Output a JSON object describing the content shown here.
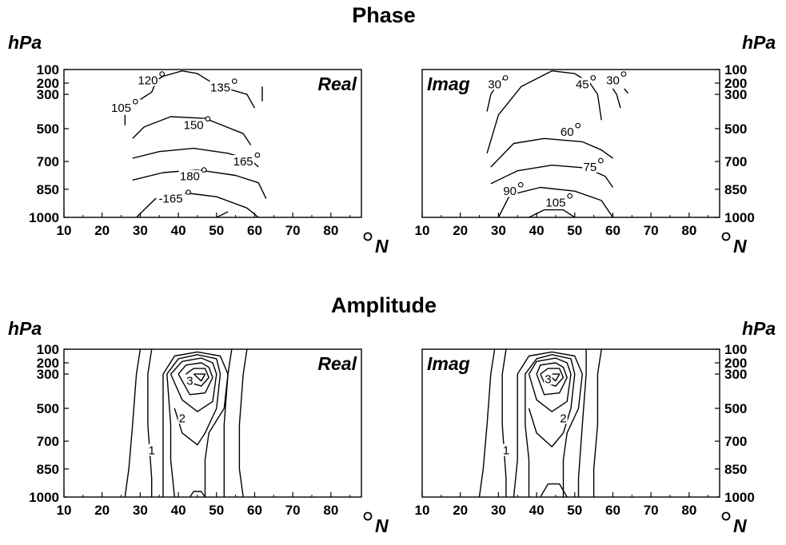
{
  "figure": {
    "phase_title": "Phase",
    "amplitude_title": "Amplitude",
    "pressure_unit": "hPa",
    "lat_unit": "N"
  },
  "chart_data": [
    {
      "type": "contour",
      "title": "Phase",
      "panel_label": "Real",
      "ylabel": "hPa",
      "xlabel": "N",
      "x_ticks": [
        "10",
        "20",
        "30",
        "40",
        "50",
        "60",
        "70",
        "80"
      ],
      "y_ticks": [
        "100",
        "200",
        "300",
        "500",
        "700",
        "850",
        "1000"
      ],
      "xlim": [
        10,
        88
      ],
      "ylim": [
        1000,
        100
      ],
      "contour_labels": [
        {
          "text": "120",
          "x": 32,
          "p": 180,
          "deg": true
        },
        {
          "text": "135",
          "x": 51,
          "p": 240,
          "deg": true
        },
        {
          "text": "105",
          "x": 25,
          "p": 380,
          "deg": true
        },
        {
          "text": "150",
          "x": 44,
          "p": 480,
          "deg": true
        },
        {
          "text": "165",
          "x": 57,
          "p": 700,
          "deg": true
        },
        {
          "text": "180",
          "x": 43,
          "p": 780,
          "deg": true
        },
        {
          "text": "-165",
          "x": 38,
          "p": 900,
          "deg": true
        }
      ],
      "contours": [
        [
          [
            30,
            150
          ],
          [
            34,
            200
          ],
          [
            33,
            280
          ],
          [
            30,
            330
          ]
        ],
        [
          [
            26,
            420
          ],
          [
            26,
            480
          ]
        ],
        [
          [
            33,
            200
          ],
          [
            36,
            150
          ],
          [
            41,
            110
          ],
          [
            45,
            130
          ],
          [
            49,
            200
          ],
          [
            54,
            260
          ],
          [
            58,
            300
          ],
          [
            60,
            380
          ]
        ],
        [
          [
            28,
            560
          ],
          [
            31,
            490
          ],
          [
            38,
            430
          ],
          [
            47,
            440
          ],
          [
            57,
            530
          ],
          [
            59,
            600
          ]
        ],
        [
          [
            28,
            680
          ],
          [
            35,
            640
          ],
          [
            44,
            620
          ],
          [
            53,
            650
          ],
          [
            59,
            690
          ],
          [
            61,
            730
          ]
        ],
        [
          [
            28,
            800
          ],
          [
            36,
            760
          ],
          [
            45,
            745
          ],
          [
            55,
            775
          ],
          [
            61,
            815
          ],
          [
            63,
            900
          ]
        ],
        [
          [
            29,
            1000
          ],
          [
            34,
            900
          ],
          [
            42,
            870
          ],
          [
            50,
            890
          ],
          [
            58,
            950
          ],
          [
            61,
            1000
          ]
        ],
        [
          [
            50,
            1000
          ],
          [
            53,
            970
          ]
        ],
        [
          [
            62,
            230
          ],
          [
            62,
            340
          ]
        ]
      ]
    },
    {
      "type": "contour",
      "title": "Phase",
      "panel_label": "Imag",
      "ylabel": "hPa",
      "xlabel": "N",
      "x_ticks": [
        "10",
        "20",
        "30",
        "40",
        "50",
        "60",
        "70",
        "80"
      ],
      "y_ticks": [
        "100",
        "200",
        "300",
        "500",
        "700",
        "850",
        "1000"
      ],
      "xlim": [
        10,
        88
      ],
      "ylim": [
        1000,
        100
      ],
      "contour_labels": [
        {
          "text": "30",
          "x": 29,
          "p": 210,
          "deg": true
        },
        {
          "text": "45",
          "x": 52,
          "p": 210,
          "deg": true
        },
        {
          "text": "30",
          "x": 60,
          "p": 180,
          "deg": true
        },
        {
          "text": "60",
          "x": 48,
          "p": 520,
          "deg": true
        },
        {
          "text": "75",
          "x": 54,
          "p": 730,
          "deg": true
        },
        {
          "text": "90",
          "x": 33,
          "p": 860,
          "deg": true
        },
        {
          "text": "105",
          "x": 45,
          "p": 920,
          "deg": true
        }
      ],
      "contours": [
        [
          [
            27,
            400
          ],
          [
            28,
            300
          ],
          [
            30,
            200
          ],
          [
            32,
            150
          ]
        ],
        [
          [
            27,
            650
          ],
          [
            30,
            420
          ],
          [
            36,
            230
          ],
          [
            44,
            110
          ],
          [
            50,
            130
          ],
          [
            54,
            200
          ],
          [
            56,
            300
          ],
          [
            57,
            450
          ]
        ],
        [
          [
            28,
            730
          ],
          [
            34,
            590
          ],
          [
            42,
            560
          ],
          [
            52,
            580
          ],
          [
            57,
            630
          ],
          [
            60,
            680
          ]
        ],
        [
          [
            28,
            820
          ],
          [
            35,
            750
          ],
          [
            44,
            720
          ],
          [
            53,
            735
          ],
          [
            58,
            780
          ],
          [
            60,
            840
          ]
        ],
        [
          [
            30,
            1000
          ],
          [
            33,
            880
          ],
          [
            41,
            840
          ],
          [
            50,
            860
          ],
          [
            57,
            910
          ],
          [
            60,
            1000
          ]
        ],
        [
          [
            38,
            1000
          ],
          [
            42,
            960
          ],
          [
            47,
            960
          ],
          [
            50,
            1000
          ]
        ],
        [
          [
            60,
            250
          ],
          [
            61,
            300
          ],
          [
            62,
            380
          ]
        ],
        [
          [
            63,
            250
          ],
          [
            64,
            290
          ]
        ]
      ]
    },
    {
      "type": "contour",
      "title": "Amplitude",
      "panel_label": "Real",
      "ylabel": "hPa",
      "xlabel": "N",
      "x_ticks": [
        "10",
        "20",
        "30",
        "40",
        "50",
        "60",
        "70",
        "80"
      ],
      "y_ticks": [
        "100",
        "200",
        "300",
        "500",
        "700",
        "850",
        "1000"
      ],
      "xlim": [
        10,
        88
      ],
      "ylim": [
        1000,
        100
      ],
      "contour_labels": [
        {
          "text": "3",
          "x": 43,
          "p": 340
        },
        {
          "text": "2",
          "x": 41,
          "p": 560
        },
        {
          "text": "1",
          "x": 33,
          "p": 750
        }
      ],
      "contours": [
        [
          [
            30,
            100
          ],
          [
            29,
            300
          ],
          [
            28,
            600
          ],
          [
            27,
            850
          ],
          [
            26,
            1000
          ]
        ],
        [
          [
            58,
            100
          ],
          [
            57,
            300
          ],
          [
            56,
            600
          ],
          [
            56,
            850
          ],
          [
            57,
            1000
          ]
        ],
        [
          [
            33,
            100
          ],
          [
            32,
            300
          ],
          [
            32,
            600
          ],
          [
            33,
            900
          ],
          [
            33,
            1000
          ]
        ],
        [
          [
            54,
            100
          ],
          [
            53,
            300
          ],
          [
            52,
            600
          ],
          [
            52,
            900
          ],
          [
            52,
            1000
          ]
        ],
        [
          [
            36,
            1000
          ],
          [
            36,
            800
          ],
          [
            36,
            600
          ],
          [
            36,
            300
          ],
          [
            39,
            150
          ],
          [
            45,
            120
          ],
          [
            51,
            150
          ],
          [
            53,
            300
          ],
          [
            52,
            500
          ],
          [
            48,
            650
          ],
          [
            47,
            800
          ],
          [
            47,
            1000
          ]
        ],
        [
          [
            39,
            1000
          ],
          [
            38,
            800
          ],
          [
            38,
            600
          ],
          [
            37,
            300
          ],
          [
            40,
            170
          ],
          [
            45,
            140
          ],
          [
            50,
            170
          ],
          [
            51,
            300
          ],
          [
            50,
            500
          ],
          [
            47,
            650
          ],
          [
            45,
            720
          ],
          [
            41,
            650
          ],
          [
            39,
            500
          ]
        ],
        [
          [
            38,
            300
          ],
          [
            41,
            190
          ],
          [
            46,
            165
          ],
          [
            49,
            200
          ],
          [
            50,
            300
          ],
          [
            49,
            460
          ],
          [
            45,
            520
          ],
          [
            41,
            450
          ],
          [
            38,
            300
          ]
        ],
        [
          [
            40,
            300
          ],
          [
            42,
            220
          ],
          [
            46,
            200
          ],
          [
            48,
            240
          ],
          [
            49,
            320
          ],
          [
            47,
            410
          ],
          [
            43,
            420
          ],
          [
            40,
            300
          ]
        ],
        [
          [
            42,
            300
          ],
          [
            44,
            250
          ],
          [
            47,
            250
          ],
          [
            48,
            320
          ],
          [
            46,
            370
          ],
          [
            43,
            350
          ],
          [
            42,
            300
          ]
        ],
        [
          [
            44,
            300
          ],
          [
            47,
            300
          ],
          [
            46,
            340
          ],
          [
            44,
            300
          ]
        ],
        [
          [
            43,
            1000
          ],
          [
            44,
            970
          ],
          [
            46,
            970
          ],
          [
            47,
            1000
          ]
        ]
      ]
    },
    {
      "type": "contour",
      "title": "Amplitude",
      "panel_label": "Imag",
      "ylabel": "hPa",
      "xlabel": "N",
      "x_ticks": [
        "10",
        "20",
        "30",
        "40",
        "50",
        "60",
        "70",
        "80"
      ],
      "y_ticks": [
        "100",
        "200",
        "300",
        "500",
        "700",
        "850",
        "1000"
      ],
      "xlim": [
        10,
        88
      ],
      "ylim": [
        1000,
        100
      ],
      "contour_labels": [
        {
          "text": "3",
          "x": 43,
          "p": 330
        },
        {
          "text": "2",
          "x": 47,
          "p": 560
        },
        {
          "text": "1",
          "x": 32,
          "p": 750
        }
      ],
      "contours": [
        [
          [
            29,
            100
          ],
          [
            28,
            300
          ],
          [
            27,
            600
          ],
          [
            26,
            850
          ],
          [
            25,
            1000
          ]
        ],
        [
          [
            57,
            100
          ],
          [
            56,
            300
          ],
          [
            56,
            600
          ],
          [
            55,
            850
          ],
          [
            55,
            1000
          ]
        ],
        [
          [
            32,
            100
          ],
          [
            31,
            300
          ],
          [
            31,
            600
          ],
          [
            32,
            900
          ],
          [
            32,
            1000
          ]
        ],
        [
          [
            53,
            100
          ],
          [
            53,
            300
          ],
          [
            52,
            600
          ],
          [
            51,
            900
          ],
          [
            51,
            1000
          ]
        ],
        [
          [
            34,
            1000
          ],
          [
            35,
            800
          ],
          [
            35,
            600
          ],
          [
            35,
            300
          ],
          [
            38,
            150
          ],
          [
            44,
            120
          ],
          [
            50,
            150
          ],
          [
            52,
            300
          ],
          [
            51,
            500
          ],
          [
            48,
            650
          ],
          [
            47,
            800
          ],
          [
            47,
            1000
          ]
        ],
        [
          [
            38,
            1000
          ],
          [
            38,
            800
          ],
          [
            37,
            600
          ],
          [
            37,
            300
          ],
          [
            40,
            170
          ],
          [
            44,
            140
          ],
          [
            49,
            170
          ],
          [
            50,
            300
          ],
          [
            49,
            500
          ],
          [
            47,
            650
          ],
          [
            44,
            730
          ],
          [
            40,
            650
          ],
          [
            38,
            500
          ]
        ],
        [
          [
            38,
            300
          ],
          [
            40,
            190
          ],
          [
            45,
            165
          ],
          [
            48,
            200
          ],
          [
            49,
            300
          ],
          [
            48,
            460
          ],
          [
            44,
            520
          ],
          [
            40,
            450
          ],
          [
            38,
            300
          ]
        ],
        [
          [
            40,
            300
          ],
          [
            41,
            220
          ],
          [
            45,
            200
          ],
          [
            47,
            240
          ],
          [
            48,
            320
          ],
          [
            46,
            410
          ],
          [
            42,
            420
          ],
          [
            40,
            300
          ]
        ],
        [
          [
            41,
            300
          ],
          [
            43,
            250
          ],
          [
            46,
            250
          ],
          [
            47,
            320
          ],
          [
            45,
            370
          ],
          [
            42,
            350
          ],
          [
            41,
            300
          ]
        ],
        [
          [
            43,
            300
          ],
          [
            46,
            300
          ],
          [
            45,
            340
          ],
          [
            43,
            300
          ]
        ],
        [
          [
            41,
            1000
          ],
          [
            43,
            930
          ],
          [
            46,
            930
          ],
          [
            48,
            1000
          ]
        ]
      ]
    }
  ]
}
